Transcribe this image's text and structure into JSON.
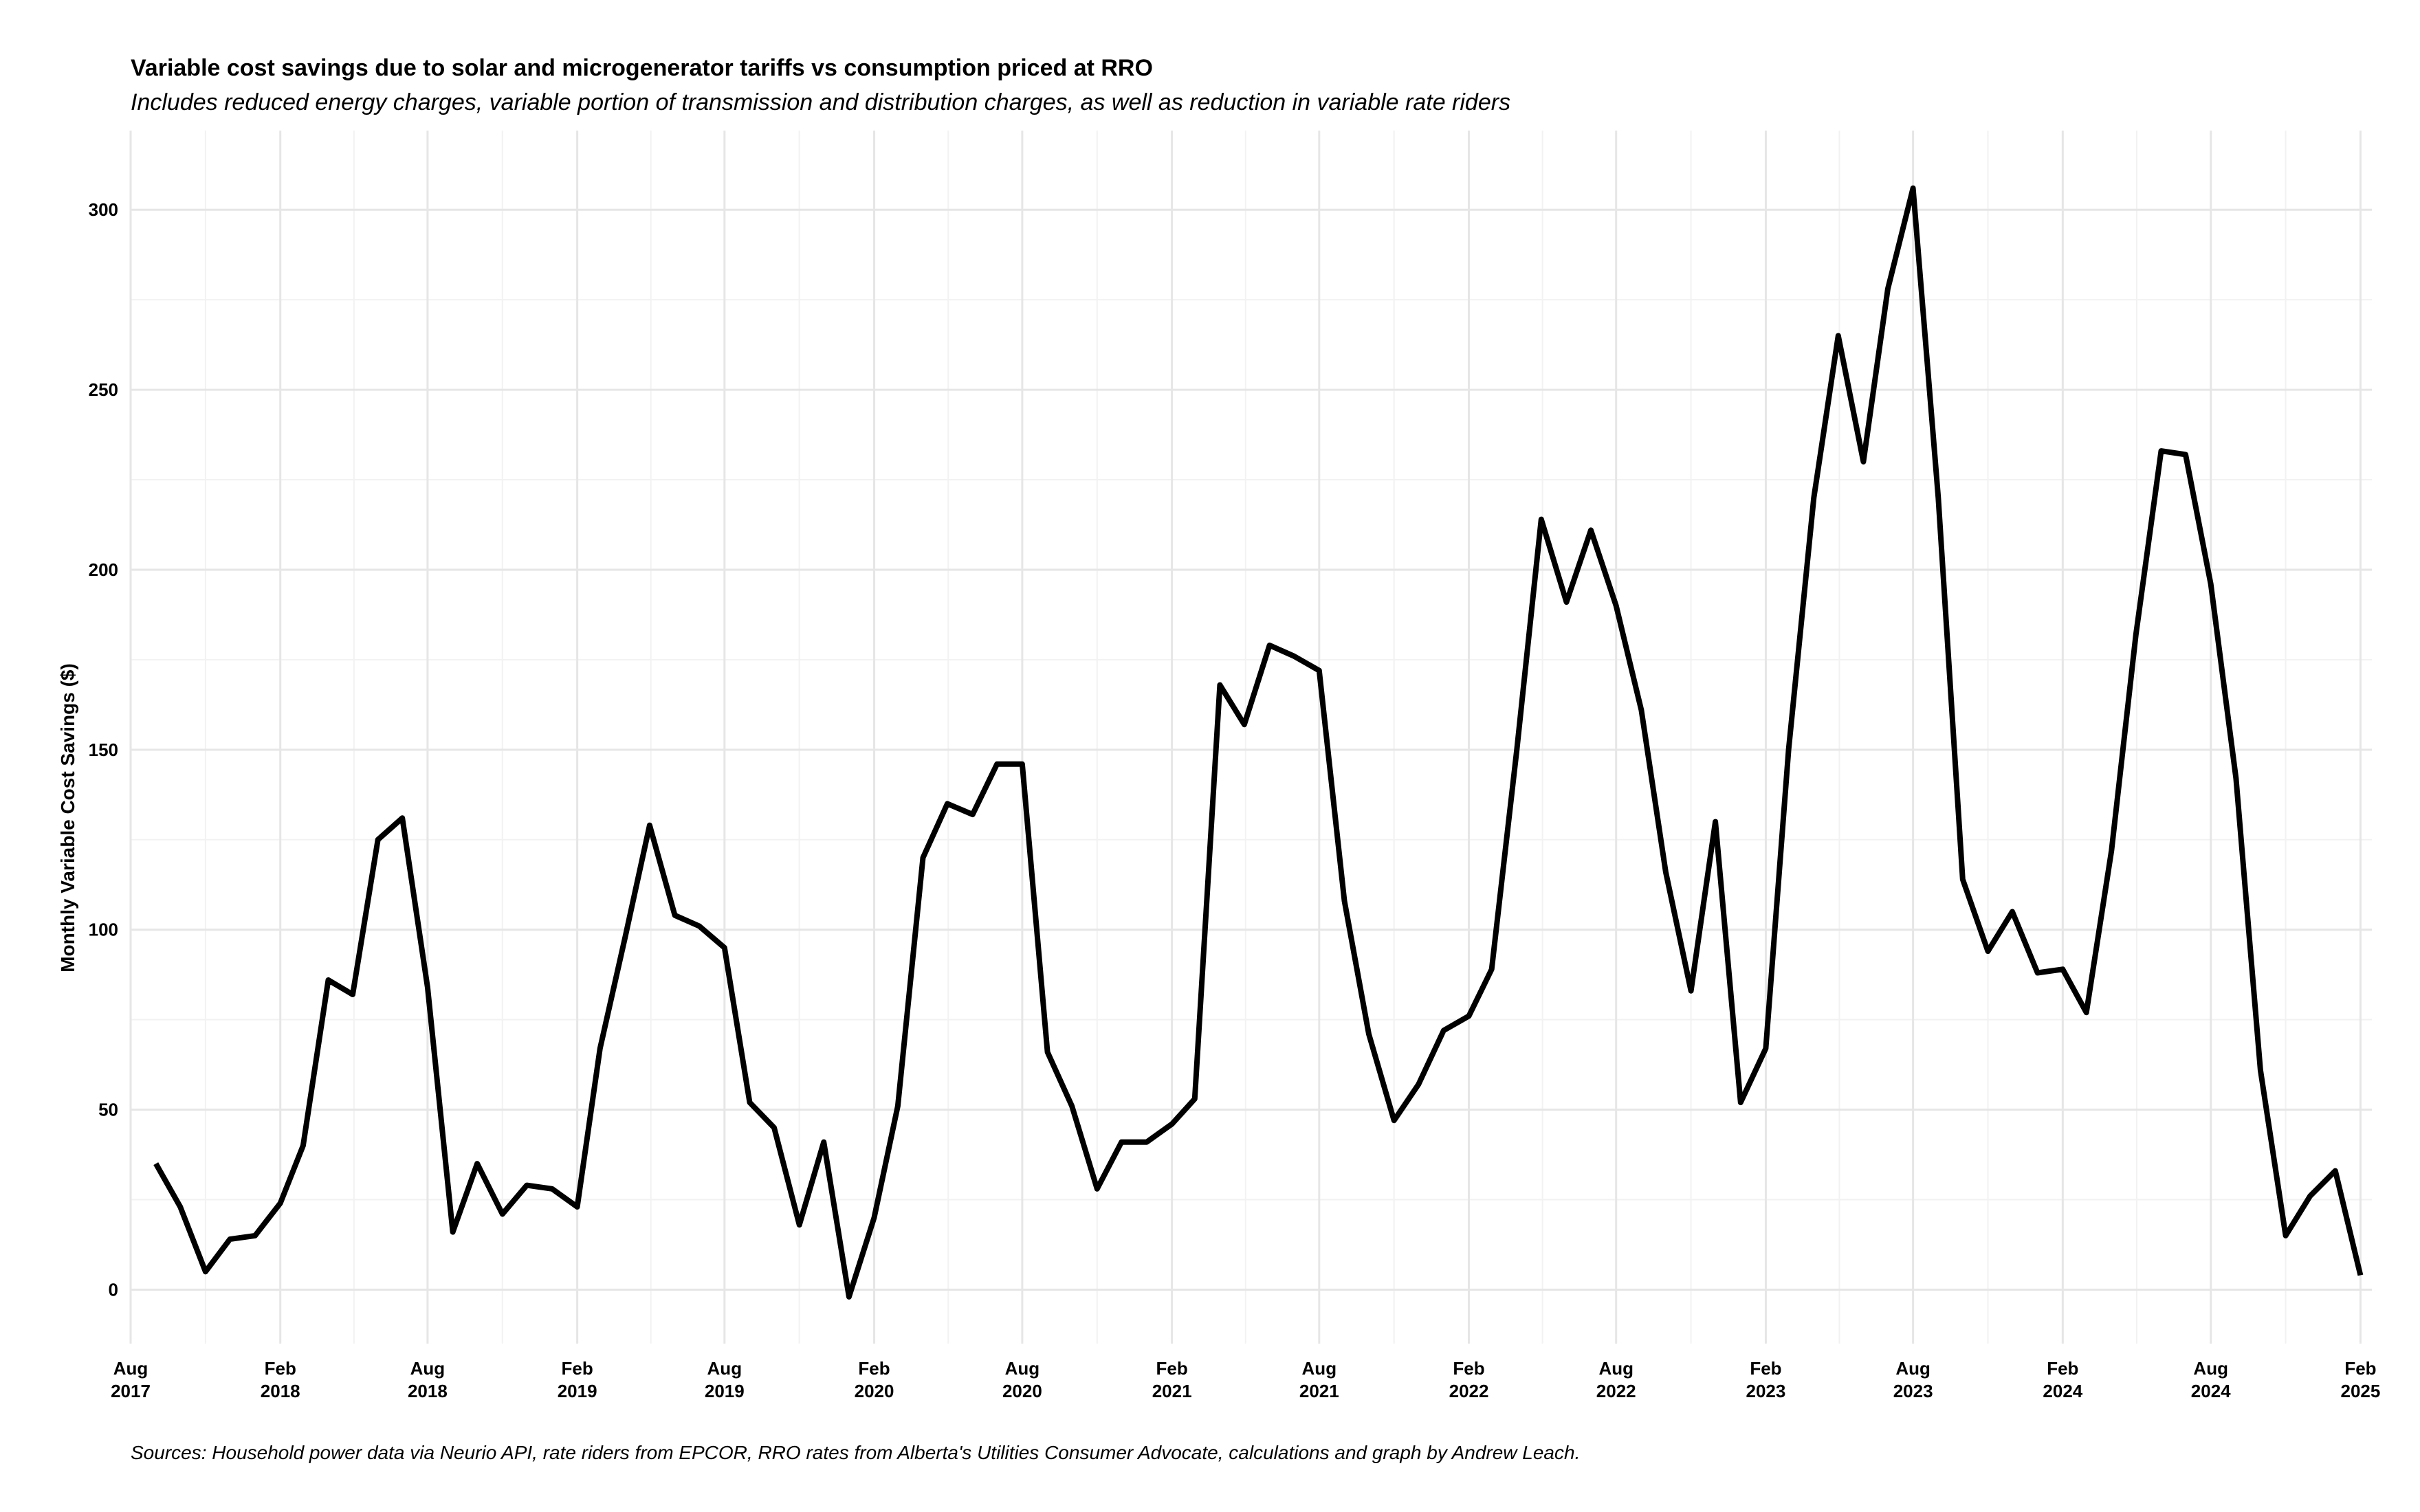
{
  "chart_data": {
    "type": "line",
    "title": "Variable cost savings due to solar and microgenerator tariffs vs consumption priced at RRO",
    "subtitle": "Includes reduced energy charges, variable portion of transmission and distribution charges, as well as reduction in variable rate riders",
    "caption": "Sources: Household power data via Neurio API, rate riders from EPCOR, RRO rates from Alberta's Utilities Consumer Advocate, calculations and graph by Andrew Leach.",
    "xlabel": "",
    "ylabel": "Monthly Variable Cost Savings ($)",
    "ylim": [
      -15,
      322
    ],
    "xlim": [
      "2017-08-01",
      "2025-02-15"
    ],
    "y_ticks": [
      0,
      50,
      100,
      150,
      200,
      250,
      300
    ],
    "x_ticks": [
      {
        "date": "2017-08-01",
        "month": "Aug",
        "year": "2017"
      },
      {
        "date": "2018-02-01",
        "month": "Feb",
        "year": "2018"
      },
      {
        "date": "2018-08-01",
        "month": "Aug",
        "year": "2018"
      },
      {
        "date": "2019-02-01",
        "month": "Feb",
        "year": "2019"
      },
      {
        "date": "2019-08-01",
        "month": "Aug",
        "year": "2019"
      },
      {
        "date": "2020-02-01",
        "month": "Feb",
        "year": "2020"
      },
      {
        "date": "2020-08-01",
        "month": "Aug",
        "year": "2020"
      },
      {
        "date": "2021-02-01",
        "month": "Feb",
        "year": "2021"
      },
      {
        "date": "2021-08-01",
        "month": "Aug",
        "year": "2021"
      },
      {
        "date": "2022-02-01",
        "month": "Feb",
        "year": "2022"
      },
      {
        "date": "2022-08-01",
        "month": "Aug",
        "year": "2022"
      },
      {
        "date": "2023-02-01",
        "month": "Feb",
        "year": "2023"
      },
      {
        "date": "2023-08-01",
        "month": "Aug",
        "year": "2023"
      },
      {
        "date": "2024-02-01",
        "month": "Feb",
        "year": "2024"
      },
      {
        "date": "2024-08-01",
        "month": "Aug",
        "year": "2024"
      },
      {
        "date": "2025-02-01",
        "month": "Feb",
        "year": "2025"
      }
    ],
    "grid": true,
    "line_color": "#000000",
    "series": [
      {
        "x": [
          "2017-09",
          "2017-10",
          "2017-11",
          "2017-12",
          "2018-01",
          "2018-02",
          "2018-03",
          "2018-04",
          "2018-05",
          "2018-06",
          "2018-07",
          "2018-08",
          "2018-09",
          "2018-10",
          "2018-11",
          "2018-12",
          "2019-01",
          "2019-02",
          "2019-03",
          "2019-04",
          "2019-05",
          "2019-06",
          "2019-07",
          "2019-08",
          "2019-09",
          "2019-10",
          "2019-11",
          "2019-12",
          "2020-01",
          "2020-02",
          "2020-03",
          "2020-04",
          "2020-05",
          "2020-06",
          "2020-07",
          "2020-08",
          "2020-09",
          "2020-10",
          "2020-11",
          "2020-12",
          "2021-01",
          "2021-02",
          "2021-03",
          "2021-04",
          "2021-05",
          "2021-06",
          "2021-07",
          "2021-08",
          "2021-09",
          "2021-10",
          "2021-11",
          "2021-12",
          "2022-01",
          "2022-02",
          "2022-03",
          "2022-04",
          "2022-05",
          "2022-06",
          "2022-07",
          "2022-08",
          "2022-09",
          "2022-10",
          "2022-11",
          "2022-12",
          "2023-01",
          "2023-02",
          "2023-03",
          "2023-04",
          "2023-05",
          "2023-06",
          "2023-07",
          "2023-08",
          "2023-09",
          "2023-10",
          "2023-11",
          "2023-12",
          "2024-01",
          "2024-02",
          "2024-03",
          "2024-04",
          "2024-05",
          "2024-06",
          "2024-07",
          "2024-08",
          "2024-09",
          "2024-10",
          "2024-11",
          "2024-12",
          "2025-01",
          "2025-02"
        ],
        "values": [
          35,
          23,
          5,
          14,
          15,
          24,
          40,
          86,
          82,
          125,
          131,
          84,
          16,
          35,
          21,
          29,
          28,
          23,
          67,
          98,
          129,
          104,
          101,
          95,
          52,
          45,
          18,
          41,
          -2,
          20,
          51,
          120,
          135,
          132,
          146,
          146,
          66,
          51,
          28,
          41,
          41,
          46,
          53,
          168,
          157,
          179,
          176,
          172,
          108,
          71,
          47,
          57,
          72,
          76,
          89,
          150,
          214,
          191,
          211,
          190,
          161,
          116,
          83,
          130,
          52,
          67,
          150,
          220,
          265,
          230,
          278,
          306,
          220,
          114,
          94,
          105,
          88,
          89,
          77,
          122,
          182,
          233,
          232,
          196,
          142,
          61,
          15,
          26,
          33,
          4
        ]
      }
    ]
  }
}
